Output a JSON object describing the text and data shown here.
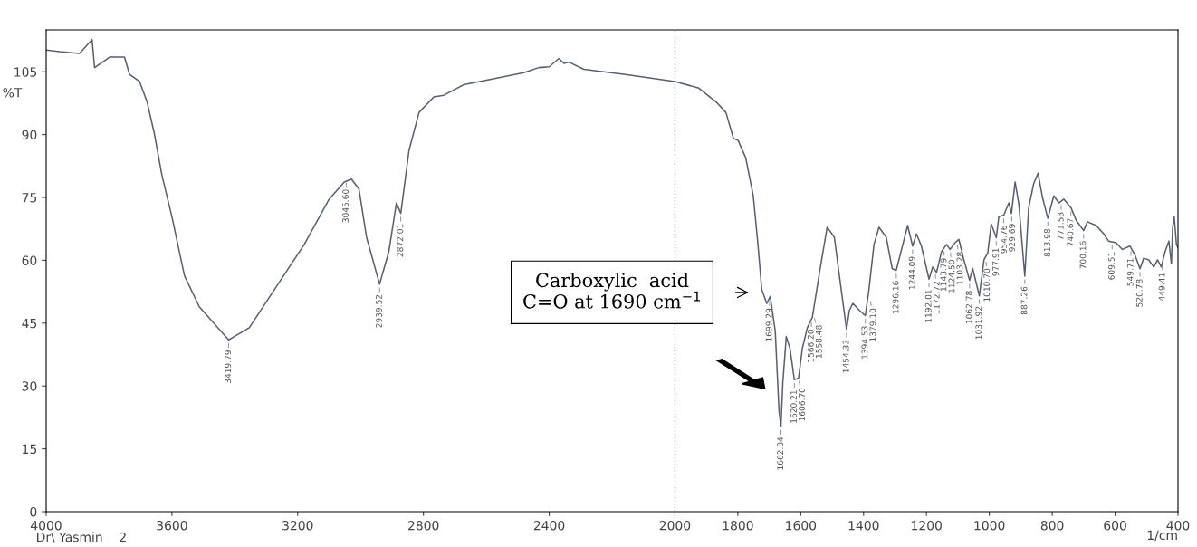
{
  "chart_data": {
    "type": "line",
    "ylabel": "%T",
    "xlabel": "1/cm",
    "xlim": [
      4000,
      400
    ],
    "xticks": [
      4000,
      3600,
      3200,
      2800,
      2400,
      2000,
      1800,
      1600,
      1400,
      1200,
      1000,
      800,
      600,
      400
    ],
    "ylim": [
      0,
      115
    ],
    "yticks": [
      0,
      15,
      30,
      45,
      60,
      75,
      90,
      105
    ],
    "grid": false,
    "marker": "none",
    "line_style": "solid",
    "ref_lines": [
      {
        "axis": "x",
        "value": 2000,
        "color": "#8a8a8a",
        "line_style": "dotted"
      }
    ],
    "series": [
      {
        "color": "#5a5f70",
        "x": [
          4000,
          3957,
          3894,
          3854,
          3846,
          3798,
          3751,
          3735,
          3703,
          3679,
          3656,
          3632,
          3600,
          3560,
          3513,
          3419.79,
          3354,
          3259,
          3179,
          3100,
          3052,
          3029,
          3005,
          2981,
          2939.52,
          2910,
          2886,
          2872.01,
          2846,
          2814,
          2767,
          2735,
          2672,
          2592,
          2481,
          2433,
          2400,
          2369,
          2353,
          2337,
          2290,
          2163,
          2000,
          1924,
          1869,
          1838,
          1814,
          1799,
          1775,
          1751,
          1736,
          1724,
          1708,
          1697,
          1681,
          1669,
          1662.84,
          1657,
          1646,
          1634,
          1620.21,
          1606.7,
          1595,
          1579,
          1563,
          1540,
          1516,
          1508,
          1493,
          1477,
          1454.33,
          1445,
          1434,
          1414,
          1394.53,
          1383,
          1367,
          1351,
          1328,
          1309,
          1296.16,
          1260,
          1244,
          1232,
          1216,
          1192.01,
          1180,
          1168,
          1152,
          1136,
          1125,
          1109,
          1097,
          1081,
          1062.78,
          1053,
          1031.92,
          1017,
          1005,
          994,
          977.91,
          970,
          954,
          938,
          929.69,
          918,
          906,
          887.26,
          875,
          859,
          845,
          831,
          813.98,
          795,
          779,
          763,
          740,
          724,
          700.16,
          688,
          660,
          636,
          621,
          597,
          577,
          553,
          537,
          520.78,
          509,
          493,
          477,
          465,
          453,
          441,
          429,
          421,
          417,
          412,
          405,
          400
        ],
        "values": [
          110.2,
          109.8,
          109.4,
          112.7,
          106,
          108.5,
          108.5,
          104.4,
          102.7,
          97.8,
          90.3,
          80.4,
          70.4,
          56.3,
          48.9,
          41.0,
          43.9,
          54.7,
          63.8,
          74.6,
          78.7,
          79.4,
          77,
          65.5,
          54.3,
          62.1,
          73.7,
          71.2,
          86.2,
          95.3,
          99,
          99.4,
          101.9,
          103.1,
          104.8,
          106,
          106.2,
          108.2,
          107,
          107.3,
          105.6,
          104.4,
          102.7,
          101.1,
          97.8,
          95.3,
          89.1,
          88.6,
          84.5,
          75.4,
          63.8,
          53.0,
          49.7,
          51.4,
          43.1,
          24,
          20.3,
          30.7,
          41.8,
          38.9,
          31.5,
          31.9,
          38.9,
          43.9,
          46.4,
          57.2,
          67.9,
          67.1,
          65.5,
          56.3,
          43.5,
          48.1,
          49.7,
          48.1,
          46.8,
          53,
          63.8,
          67.9,
          65.5,
          58,
          57.6,
          68.3,
          63.4,
          66.3,
          63.4,
          55.5,
          58.4,
          57.1,
          62.1,
          63.8,
          62.6,
          64.2,
          65.0,
          60.1,
          55.2,
          58.1,
          51.5,
          60.1,
          61.8,
          68.7,
          65.4,
          70.4,
          70.8,
          73.7,
          71.2,
          78.7,
          73.3,
          56.2,
          72.5,
          78.3,
          80.8,
          75,
          70,
          75.4,
          73.7,
          74.6,
          72.5,
          69.6,
          67.1,
          69.2,
          68.3,
          66.3,
          64.6,
          64.2,
          62.6,
          63.4,
          61.3,
          58,
          60.5,
          60.1,
          58.4,
          60.1,
          58.4,
          62.1,
          64.6,
          59.2,
          67.9,
          70.4,
          63.8,
          63
        ]
      }
    ],
    "annotations": [
      {
        "text": "3419.79",
        "x": 3419.79,
        "y": 41
      },
      {
        "text": "3045.60",
        "x": 3045.6,
        "y": 79.4
      },
      {
        "text": "2939.52",
        "x": 2939.52,
        "y": 54.3
      },
      {
        "text": "2872.01",
        "x": 2872.01,
        "y": 71.2
      },
      {
        "text": "1699.29",
        "x": 1699.29,
        "y": 51
      },
      {
        "text": "1662.84",
        "x": 1662.84,
        "y": 20.3
      },
      {
        "text": "1620.21",
        "x": 1620.21,
        "y": 31.5
      },
      {
        "text": "1606.70",
        "x": 1606.7,
        "y": 32
      },
      {
        "text": "1566.20",
        "x": 1566.2,
        "y": 46
      },
      {
        "text": "1558.48",
        "x": 1558.48,
        "y": 47
      },
      {
        "text": "1454.33",
        "x": 1454.33,
        "y": 43.5
      },
      {
        "text": "1394.53",
        "x": 1394.53,
        "y": 46.8
      },
      {
        "text": "1379.10",
        "x": 1379.1,
        "y": 51
      },
      {
        "text": "1296.16",
        "x": 1296.16,
        "y": 57.6
      },
      {
        "text": "1244.09",
        "x": 1244.09,
        "y": 63.4
      },
      {
        "text": "1192.01",
        "x": 1192.01,
        "y": 55.5
      },
      {
        "text": "1172.72",
        "x": 1172.72,
        "y": 57.5
      },
      {
        "text": "1143.79",
        "x": 1143.79,
        "y": 63
      },
      {
        "text": "1124.50",
        "x": 1124.5,
        "y": 62.6
      },
      {
        "text": "1103.28",
        "x": 1103.28,
        "y": 64.5
      },
      {
        "text": "1062.78",
        "x": 1062.78,
        "y": 55.2
      },
      {
        "text": "1031.92",
        "x": 1031.92,
        "y": 51.5
      },
      {
        "text": "1010.70",
        "x": 1010.7,
        "y": 60.5
      },
      {
        "text": "977.91",
        "x": 977.91,
        "y": 65.4
      },
      {
        "text": "954.76",
        "x": 954.76,
        "y": 70.8
      },
      {
        "text": "929.69",
        "x": 929.69,
        "y": 71.2
      },
      {
        "text": "887.26",
        "x": 887.26,
        "y": 56.2
      },
      {
        "text": "813.98",
        "x": 813.98,
        "y": 70
      },
      {
        "text": "771.53",
        "x": 771.53,
        "y": 74
      },
      {
        "text": "740.67",
        "x": 740.67,
        "y": 72.5
      },
      {
        "text": "700.16",
        "x": 700.16,
        "y": 67.1
      },
      {
        "text": "609.51",
        "x": 609.51,
        "y": 64.5
      },
      {
        "text": "549.71",
        "x": 549.71,
        "y": 63
      },
      {
        "text": "520.78",
        "x": 520.78,
        "y": 58
      },
      {
        "text": "449.41",
        "x": 449.41,
        "y": 59.5
      },
      "Carboxylic  acid\nC=O at 1690 cm$^{−1}$",
      "Dr\\ Yasmin    2"
    ]
  }
}
